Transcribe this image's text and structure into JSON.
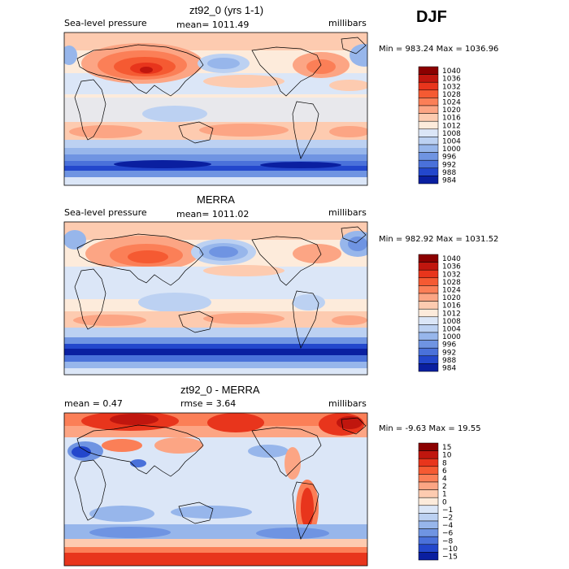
{
  "season": "DJF",
  "chart_data": [
    {
      "type": "heatmap",
      "title": "zt92_0 (yrs 1-1)",
      "variable": "Sea-level pressure",
      "mean_label": "mean= 1011.49",
      "units": "millibars",
      "range_label": "Min = 983.24 Max = 1036.96",
      "min": 983.24,
      "max": 1036.96,
      "levels": [
        "1040",
        "1036",
        "1032",
        "1028",
        "1024",
        "1020",
        "1016",
        "1012",
        "1008",
        "1004",
        "1000",
        "996",
        "992",
        "988",
        "984"
      ],
      "colors": [
        "#8b0000",
        "#c0160e",
        "#e8351c",
        "#f55a32",
        "#fb7f57",
        "#fca584",
        "#fdcbb0",
        "#fdebdb",
        "#dbe6f7",
        "#bcd1f2",
        "#97b6eb",
        "#6f94e2",
        "#4a71da",
        "#2347cc",
        "#0a1fa0"
      ]
    },
    {
      "type": "heatmap",
      "title": "MERRA",
      "variable": "Sea-level pressure",
      "mean_label": "mean= 1011.02",
      "units": "millibars",
      "range_label": "Min = 982.92 Max = 1031.52",
      "min": 982.92,
      "max": 1031.52,
      "levels": [
        "1040",
        "1036",
        "1032",
        "1028",
        "1024",
        "1020",
        "1016",
        "1012",
        "1008",
        "1004",
        "1000",
        "996",
        "992",
        "988",
        "984"
      ],
      "colors": [
        "#8b0000",
        "#c0160e",
        "#e8351c",
        "#f55a32",
        "#fb7f57",
        "#fca584",
        "#fdcbb0",
        "#fdebdb",
        "#dbe6f7",
        "#bcd1f2",
        "#97b6eb",
        "#6f94e2",
        "#4a71da",
        "#2347cc",
        "#0a1fa0"
      ]
    },
    {
      "type": "heatmap",
      "title": "zt92_0 - MERRA",
      "mean_label": "mean =    0.47",
      "rmse_label": "rmse =    3.64",
      "units": "millibars",
      "range_label": "Min =  -9.63 Max =  19.55",
      "min": -9.63,
      "max": 19.55,
      "levels": [
        "15",
        "10",
        "8",
        "6",
        "4",
        "2",
        "1",
        "0",
        "−1",
        "−2",
        "−4",
        "−6",
        "−8",
        "−10",
        "−15"
      ],
      "colors": [
        "#8b0000",
        "#c0160e",
        "#e8351c",
        "#f55a32",
        "#fb7f57",
        "#fca584",
        "#fdcbb0",
        "#fdebdb",
        "#dbe6f7",
        "#bcd1f2",
        "#97b6eb",
        "#6f94e2",
        "#4a71da",
        "#2347cc",
        "#0a1fa0"
      ]
    }
  ]
}
